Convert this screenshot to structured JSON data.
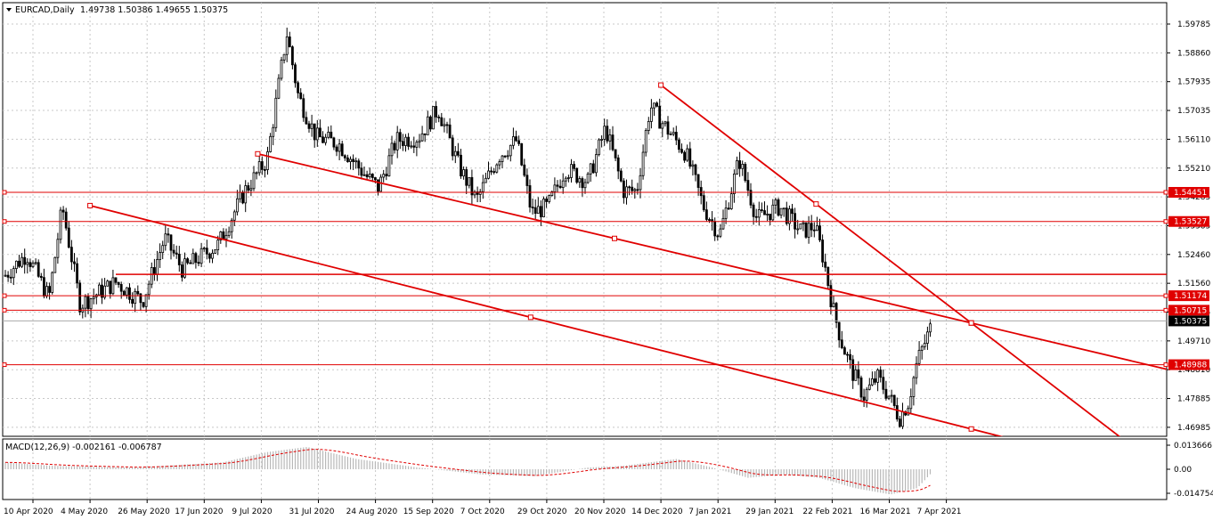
{
  "header": {
    "symbol_label": "EURCAD,Daily",
    "ohlc": "1.49738 1.50386 1.49655 1.50375"
  },
  "macd": {
    "label": "MACD(12,26,9) -0.002161 -0.006787",
    "ticks": [
      "0.013666",
      "0.00",
      "-0.014754"
    ]
  },
  "colors": {
    "candle": "#000000",
    "trend": "#e00000",
    "grid": "#c8c8c8",
    "price_tag_current": "#000000"
  },
  "chart_data": {
    "type": "candlestick",
    "symbol": "EURCAD",
    "timeframe": "Daily",
    "ohlc_last": {
      "open": 1.49738,
      "high": 1.50386,
      "low": 1.49655,
      "close": 1.50375
    },
    "y_ticks": [
      "1.59785",
      "1.58860",
      "1.57935",
      "1.57035",
      "1.56110",
      "1.55210",
      "1.54285",
      "1.53385",
      "1.52460",
      "1.51560",
      "1.50635",
      "1.49710",
      "1.48810",
      "1.47885",
      "1.46985"
    ],
    "x_ticks": [
      "10 Apr 2020",
      "4 May 2020",
      "26 May 2020",
      "17 Jun 2020",
      "9 Jul 2020",
      "31 Jul 2020",
      "24 Aug 2020",
      "15 Sep 2020",
      "7 Oct 2020",
      "29 Oct 2020",
      "20 Nov 2020",
      "14 Dec 2020",
      "7 Jan 2021",
      "29 Jan 2021",
      "22 Feb 2021",
      "16 Mar 2021",
      "7 Apr 2021"
    ],
    "horizontal_levels": [
      {
        "value": 1.54451,
        "label": "1.54451"
      },
      {
        "value": 1.53527,
        "label": "1.53527"
      },
      {
        "value": 1.51174,
        "label": "1.51174"
      },
      {
        "value": 1.50715,
        "label": "1.50715"
      },
      {
        "value": 1.48988,
        "label": "1.48988"
      }
    ],
    "extra_levels": [
      1.5185
    ],
    "current_price": "1.50375",
    "trendlines": [
      {
        "from": [
          "9 Jul 2020",
          1.5567
        ],
        "to": [
          "7 Apr 2021",
          1.5031
        ]
      },
      {
        "from": [
          "4 May 2020",
          1.5403
        ],
        "to": [
          "7 Apr 2021",
          1.4695
        ]
      },
      {
        "from": [
          "14 Dec 2020",
          1.5785
        ],
        "to": [
          "7 Apr 2021",
          1.5031
        ]
      }
    ],
    "price_range": [
      1.469,
      1.602
    ]
  }
}
